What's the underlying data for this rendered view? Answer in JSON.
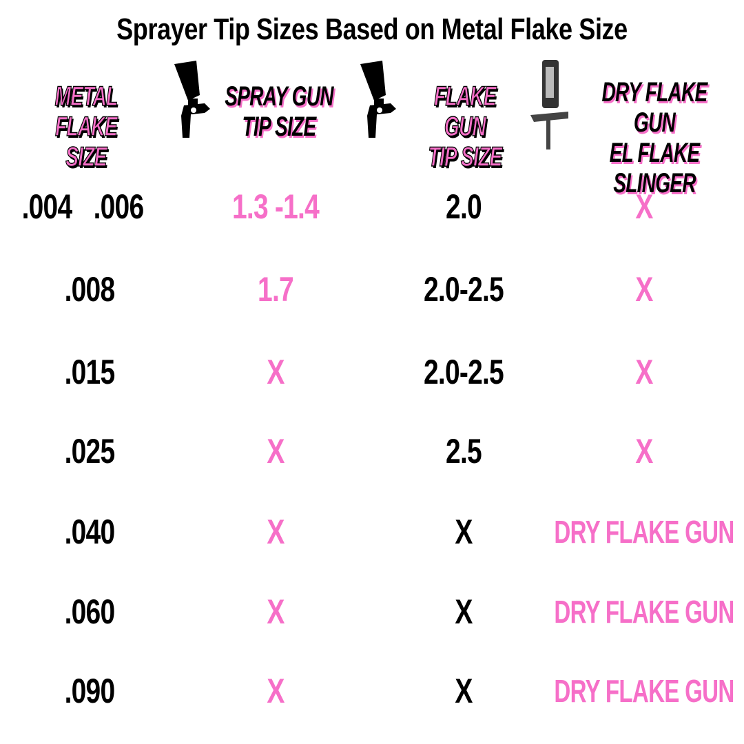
{
  "title": "Sprayer Tip Sizes Based on Metal Flake Size",
  "colors": {
    "accent_pink": "#f66fc8",
    "text": "#000000",
    "background": "#ffffff"
  },
  "headers": [
    {
      "line1": "METAL FLAKE",
      "line2": "SIZE",
      "icon": "none"
    },
    {
      "line1": "SPRAY GUN",
      "line2": "TIP SIZE",
      "icon": "spray-gun-icon"
    },
    {
      "line1": "FLAKE GUN",
      "line2": "TIP SIZE",
      "icon": "spray-gun-icon"
    },
    {
      "line1": "DRY FLAKE GUN",
      "line2": "EL FLAKE SLINGER",
      "icon": "dry-flake-gun-icon"
    }
  ],
  "rows": [
    {
      "flake": ".004",
      "flake2": ".006",
      "spray": "1.3 -1.4",
      "flakegun": "2.0",
      "dry": "X"
    },
    {
      "flake": ".008",
      "spray": "1.7",
      "flakegun": "2.0-2.5",
      "dry": "X"
    },
    {
      "flake": ".015",
      "spray": "X",
      "flakegun": "2.0-2.5",
      "dry": "X"
    },
    {
      "flake": ".025",
      "spray": "X",
      "flakegun": "2.5",
      "dry": "X"
    },
    {
      "flake": ".040",
      "spray": "X",
      "flakegun": "X",
      "dry": "DRY FLAKE GUN"
    },
    {
      "flake": ".060",
      "spray": "X",
      "flakegun": "X",
      "dry": "DRY FLAKE GUN"
    },
    {
      "flake": ".090",
      "spray": "X",
      "flakegun": "X",
      "dry": "DRY FLAKE GUN"
    }
  ]
}
